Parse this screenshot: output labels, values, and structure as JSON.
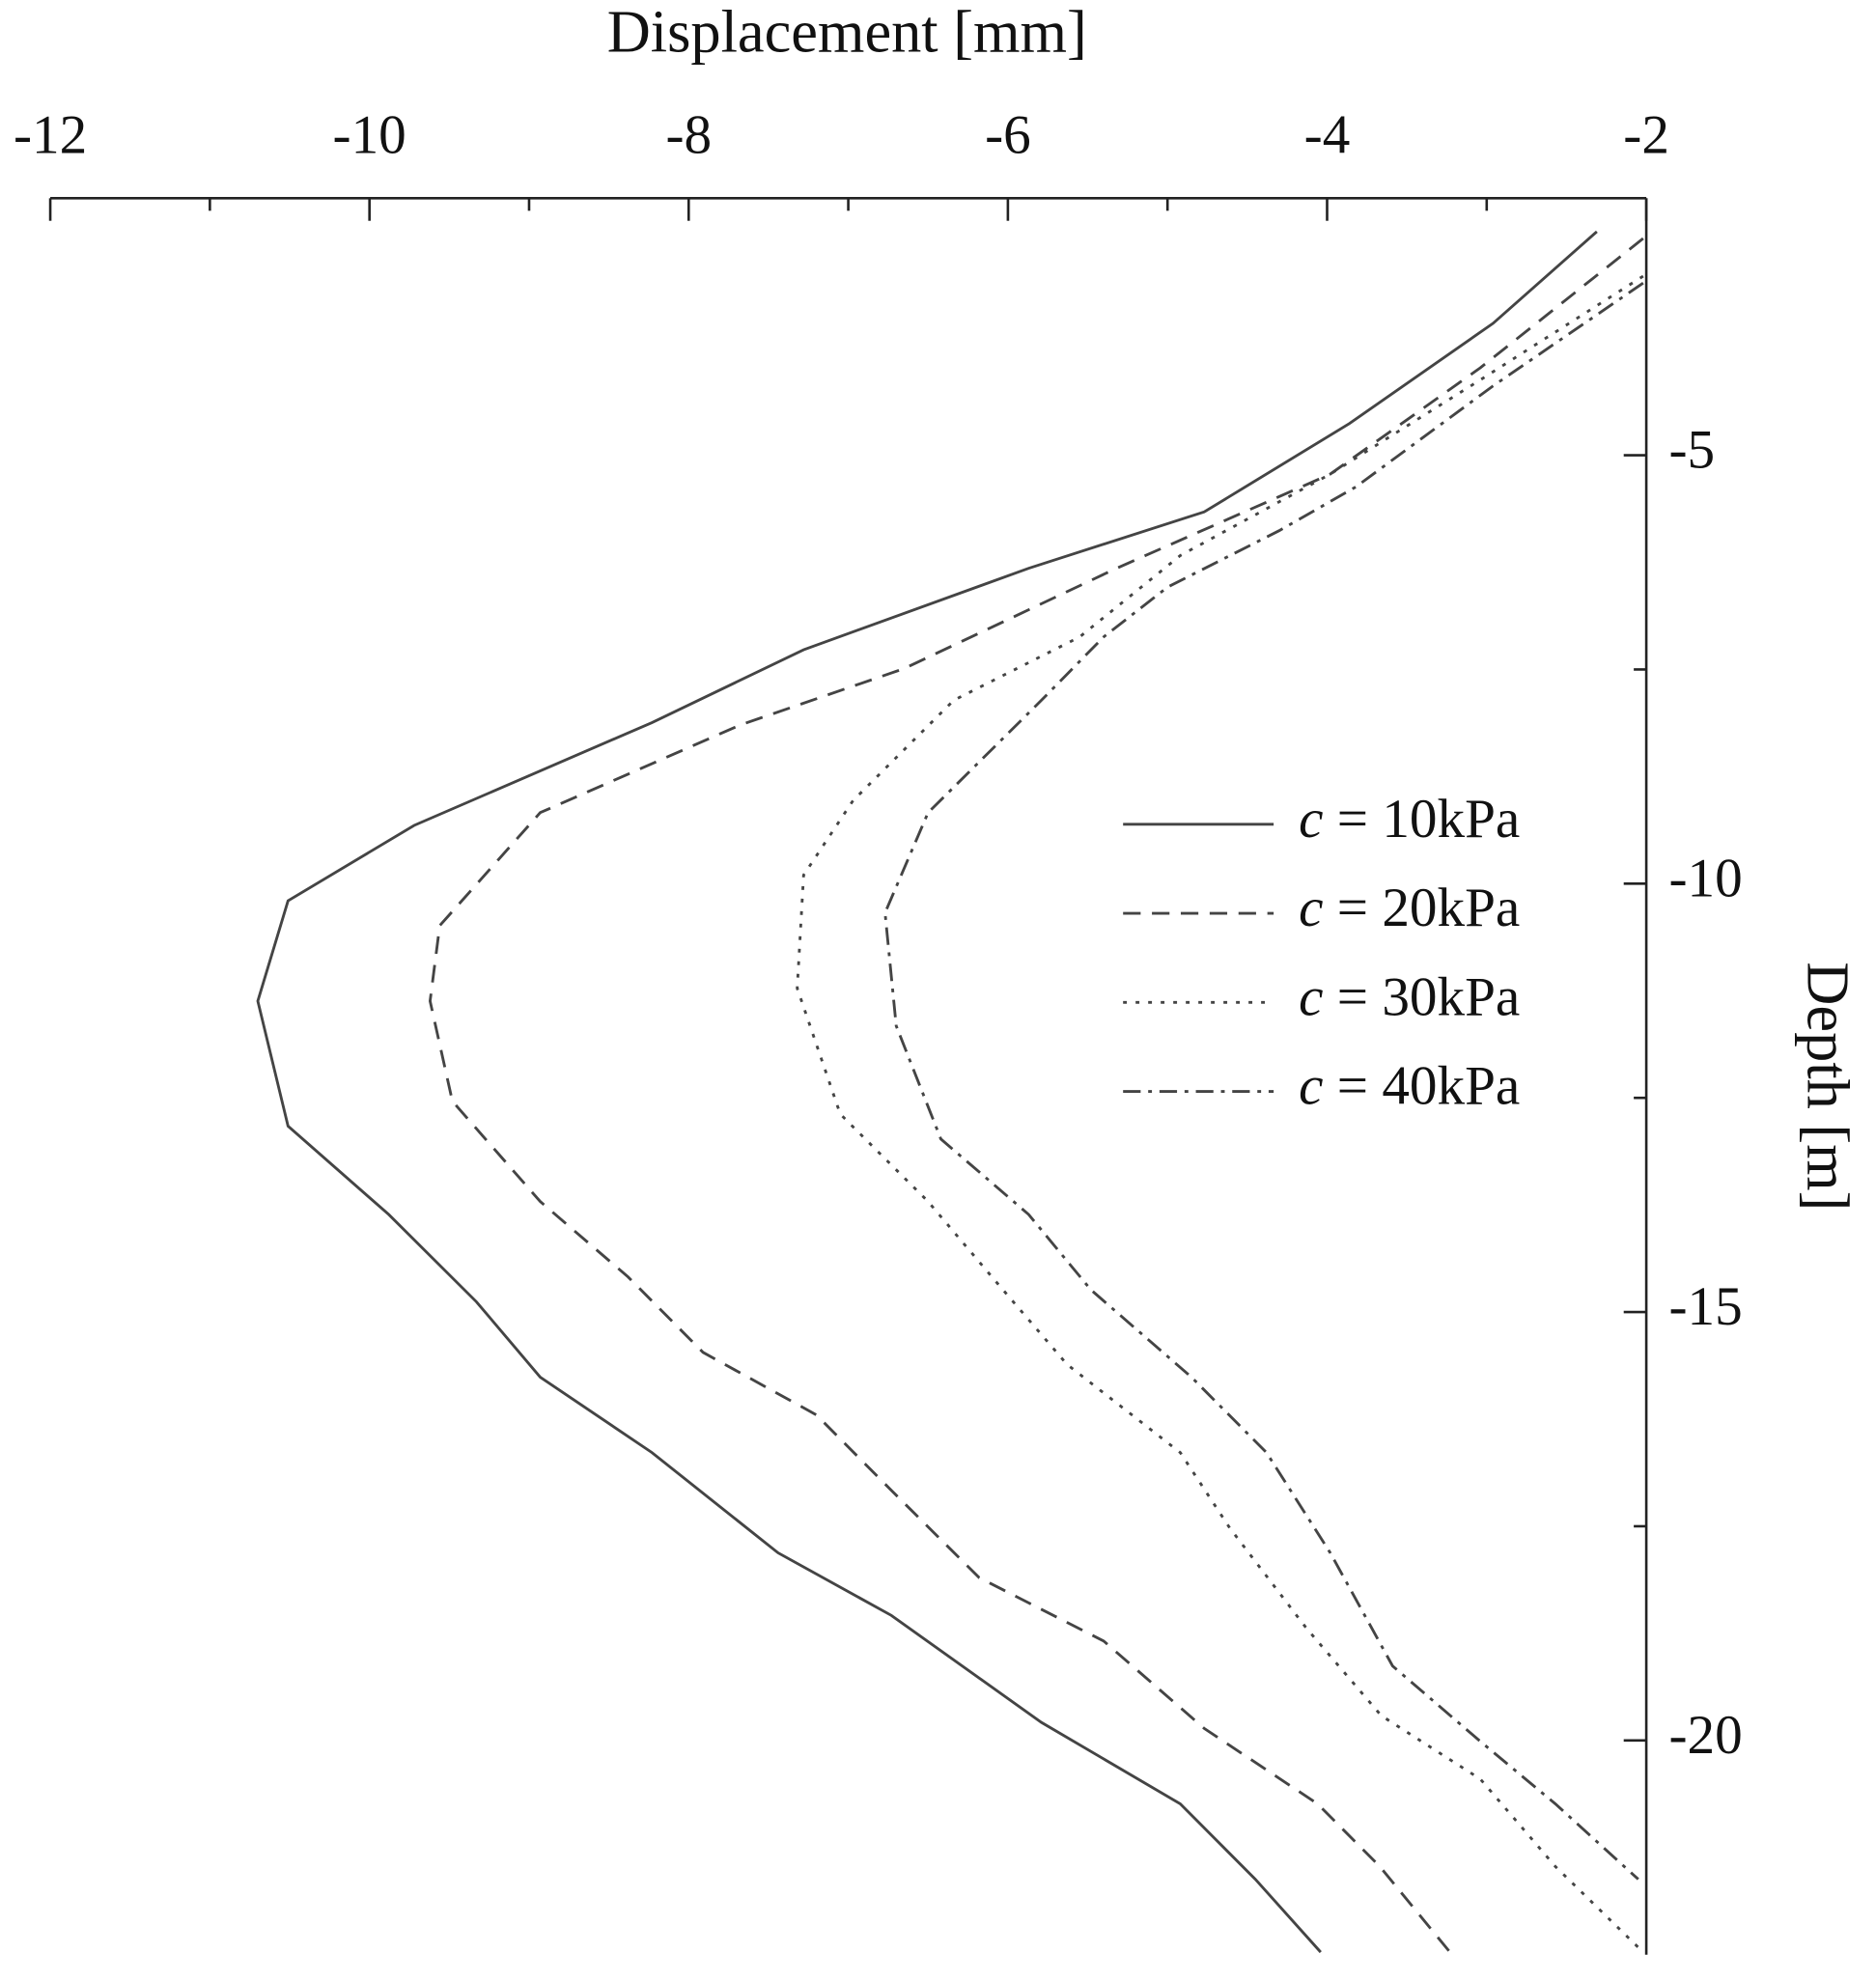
{
  "chart_data": {
    "type": "line",
    "xlabel": "Displacement [mm]",
    "ylabel": "Depth [m]",
    "xlim": [
      -12,
      -2
    ],
    "xticks": [
      -12,
      -10,
      -8,
      -6,
      -4,
      -2
    ],
    "xticks_minor": [
      -11,
      -9,
      -7,
      -5,
      -3
    ],
    "ylim": [
      -22.5,
      -2
    ],
    "yticks": [
      -5,
      -10,
      -15,
      -20
    ],
    "yticks_minor": [
      -7.5,
      -12.5,
      -17.5
    ],
    "legend": "right",
    "series": [
      {
        "name": "c = 10kPa",
        "color": "#444444",
        "style": "solid",
        "values": [
          -2.31,
          -2.96,
          -3.86,
          -4.77,
          -5.87,
          -7.28,
          -8.23,
          -9.72,
          -10.51,
          -10.7,
          -10.51,
          -9.88,
          -9.33,
          -8.93,
          -8.23,
          -7.44,
          -6.73,
          -5.79,
          -4.92,
          -4.45,
          -4.04
        ],
        "depths": [
          -2.39,
          -3.46,
          -4.63,
          -5.66,
          -6.32,
          -7.27,
          -8.12,
          -9.32,
          -10.2,
          -11.37,
          -12.83,
          -13.86,
          -14.88,
          -15.76,
          -16.64,
          -17.81,
          -18.54,
          -19.79,
          -20.74,
          -21.62,
          -22.47
        ]
      },
      {
        "name": "c = 20kPa",
        "color": "#444444",
        "style": "dashed",
        "values": [
          -2.02,
          -3.04,
          -3.98,
          -5.32,
          -6.65,
          -7.68,
          -8.93,
          -9.56,
          -9.62,
          -9.48,
          -8.93,
          -8.38,
          -7.91,
          -7.2,
          -6.73,
          -6.18,
          -5.4,
          -4.77,
          -4.06,
          -3.67,
          -3.23
        ],
        "depths": [
          -2.47,
          -3.98,
          -5.22,
          -6.32,
          -7.49,
          -8.15,
          -9.17,
          -10.49,
          -11.37,
          -12.54,
          -13.71,
          -14.59,
          -15.47,
          -16.2,
          -17.08,
          -18.1,
          -18.84,
          -19.86,
          -20.74,
          -21.47,
          -22.47
        ]
      },
      {
        "name": "c = 30kPa",
        "color": "#444444",
        "style": "dotted",
        "values": [
          -2.02,
          -3.04,
          -3.98,
          -4.92,
          -5.55,
          -6.34,
          -6.97,
          -7.28,
          -7.32,
          -7.05,
          -6.5,
          -6.1,
          -5.63,
          -4.92,
          -4.61,
          -4.13,
          -3.66,
          -3.04,
          -2.57,
          -2.02
        ],
        "depths": [
          -2.91,
          -4.12,
          -5.22,
          -6.17,
          -7.12,
          -7.86,
          -9.03,
          -9.9,
          -11.22,
          -12.69,
          -13.71,
          -14.59,
          -15.61,
          -16.64,
          -17.52,
          -18.69,
          -19.71,
          -20.45,
          -21.47,
          -22.47
        ]
      },
      {
        "name": "c = 40kPa",
        "color": "#444444",
        "style": "dashdot",
        "values": [
          -2.02,
          -2.96,
          -3.82,
          -4.3,
          -5.0,
          -5.4,
          -5.79,
          -6.5,
          -6.77,
          -6.7,
          -6.42,
          -5.87,
          -5.48,
          -4.85,
          -4.38,
          -3.98,
          -3.59,
          -3.04,
          -2.57,
          -2.05
        ],
        "depths": [
          -2.99,
          -4.19,
          -5.37,
          -5.88,
          -6.54,
          -7.12,
          -7.86,
          -9.17,
          -10.34,
          -11.66,
          -12.98,
          -13.86,
          -14.74,
          -15.76,
          -16.64,
          -17.81,
          -19.13,
          -20.01,
          -20.74,
          -21.62
        ]
      }
    ]
  }
}
